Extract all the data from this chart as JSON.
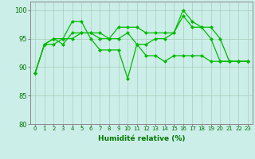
{
  "title": "",
  "xlabel": "Humidité relative (%)",
  "ylabel": "",
  "background_color": "#cceee8",
  "grid_color": "#aaccbb",
  "line_color": "#00bb00",
  "marker": "D",
  "marker_size": 2.5,
  "xlim": [
    -0.5,
    23.5
  ],
  "ylim": [
    80,
    101.5
  ],
  "yticks": [
    80,
    85,
    90,
    95,
    100
  ],
  "xticks": [
    0,
    1,
    2,
    3,
    4,
    5,
    6,
    7,
    8,
    9,
    10,
    11,
    12,
    13,
    14,
    15,
    16,
    17,
    18,
    19,
    20,
    21,
    22,
    23
  ],
  "series": [
    [
      89,
      94,
      94,
      95,
      98,
      98,
      95,
      93,
      93,
      93,
      88,
      94,
      92,
      92,
      91,
      92,
      92,
      92,
      92,
      91,
      91,
      91,
      91,
      91
    ],
    [
      89,
      94,
      95,
      94,
      96,
      96,
      96,
      95,
      95,
      97,
      97,
      97,
      96,
      96,
      96,
      96,
      99,
      97,
      97,
      95,
      91,
      91,
      91,
      91
    ],
    [
      89,
      94,
      95,
      95,
      95,
      96,
      96,
      96,
      95,
      95,
      96,
      94,
      94,
      95,
      95,
      96,
      100,
      98,
      97,
      97,
      95,
      91,
      91,
      91
    ]
  ],
  "xlabel_fontsize": 6.5,
  "xtick_fontsize": 5.0,
  "ytick_fontsize": 6.0,
  "linewidth": 0.9
}
